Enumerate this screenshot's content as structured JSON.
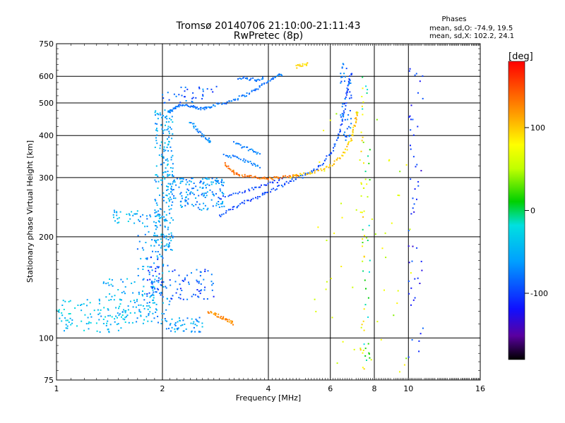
{
  "header": {
    "title_line1": "Tromsø 20140706 21:10:00-21:11:43",
    "title_line2": "RwPretec (8p)",
    "phase_title": "Phases",
    "phase_o": "mean, sd,O: -74.9, 19.5",
    "phase_x": "mean, sd,X: 102.2, 24.1"
  },
  "colorbar": {
    "unit": "[deg]",
    "range": [
      -180,
      180
    ],
    "ticks": [
      {
        "value": 100,
        "label": "100"
      },
      {
        "value": 0,
        "label": "0"
      },
      {
        "value": -100,
        "label": "-100"
      }
    ]
  },
  "chart_data": {
    "type": "scatter",
    "xlabel": "Frequency [MHz]",
    "ylabel": "Stationary phase Virtual Height [km]",
    "x_scale": "log",
    "y_scale": "log",
    "xlim": [
      1,
      16
    ],
    "ylim": [
      75,
      750
    ],
    "x_ticks": [
      {
        "value": 1,
        "label": "1"
      },
      {
        "value": 2,
        "label": "2"
      },
      {
        "value": 4,
        "label": "4"
      },
      {
        "value": 6,
        "label": "6"
      },
      {
        "value": 8,
        "label": "8"
      },
      {
        "value": 10,
        "label": "10"
      },
      {
        "value": 16,
        "label": "16"
      }
    ],
    "y_ticks": [
      {
        "value": 75,
        "label": "75"
      },
      {
        "value": 100,
        "label": "100"
      },
      {
        "value": 200,
        "label": "200"
      },
      {
        "value": 300,
        "label": "300"
      },
      {
        "value": 400,
        "label": "400"
      },
      {
        "value": 500,
        "label": "500"
      },
      {
        "value": 600,
        "label": "600"
      },
      {
        "value": 750,
        "label": "750"
      }
    ],
    "grid": true,
    "traces": [
      {
        "name": "",
        "phase": -80,
        "points": [
          [
            2.1,
            470
          ],
          [
            2.15,
            480
          ],
          [
            2.2,
            490
          ],
          [
            2.3,
            495
          ],
          [
            2.4,
            488
          ],
          [
            2.5,
            482
          ],
          [
            2.6,
            480
          ],
          [
            2.7,
            486
          ],
          [
            2.8,
            492
          ],
          [
            3.0,
            500
          ],
          [
            3.2,
            512
          ],
          [
            3.4,
            525
          ],
          [
            3.6,
            540
          ],
          [
            3.8,
            560
          ],
          [
            4.0,
            580
          ],
          [
            4.2,
            600
          ],
          [
            4.4,
            610
          ]
        ]
      },
      {
        "name": "",
        "phase": -70,
        "points": [
          [
            2.4,
            440
          ],
          [
            2.5,
            420
          ],
          [
            2.6,
            400
          ],
          [
            2.7,
            390
          ],
          [
            2.75,
            380
          ]
        ]
      },
      {
        "name": "",
        "phase": -95,
        "points": [
          [
            2.9,
            230
          ],
          [
            3.1,
            240
          ],
          [
            3.3,
            248
          ],
          [
            3.5,
            256
          ],
          [
            3.8,
            265
          ],
          [
            4.0,
            272
          ],
          [
            4.3,
            282
          ],
          [
            4.6,
            292
          ],
          [
            4.9,
            300
          ],
          [
            5.2,
            308
          ],
          [
            5.5,
            320
          ],
          [
            5.8,
            338
          ],
          [
            6.1,
            362
          ],
          [
            6.3,
            395
          ],
          [
            6.5,
            440
          ],
          [
            6.6,
            490
          ],
          [
            6.7,
            540
          ],
          [
            6.8,
            585
          ],
          [
            6.9,
            620
          ]
        ]
      },
      {
        "name": "",
        "phase": -100,
        "points": [
          [
            2.9,
            260
          ],
          [
            3.2,
            268
          ],
          [
            3.5,
            275
          ],
          [
            3.8,
            282
          ],
          [
            4.1,
            290
          ],
          [
            4.4,
            296
          ]
        ]
      },
      {
        "name": "",
        "phase": 135,
        "points": [
          [
            3.0,
            330
          ],
          [
            3.1,
            318
          ],
          [
            3.2,
            310
          ],
          [
            3.3,
            306
          ],
          [
            3.5,
            302
          ],
          [
            3.7,
            300
          ],
          [
            3.9,
            298
          ],
          [
            4.1,
            298
          ],
          [
            4.3,
            300
          ],
          [
            4.6,
            302
          ],
          [
            4.9,
            305
          ]
        ]
      },
      {
        "name": "",
        "phase": 100,
        "points": [
          [
            4.6,
            300
          ],
          [
            5.0,
            306
          ],
          [
            5.4,
            312
          ],
          [
            5.8,
            320
          ],
          [
            6.1,
            330
          ],
          [
            6.4,
            345
          ],
          [
            6.7,
            365
          ],
          [
            6.9,
            395
          ],
          [
            7.0,
            420
          ],
          [
            7.1,
            450
          ],
          [
            7.15,
            475
          ]
        ]
      },
      {
        "name": "",
        "phase": -75,
        "points": [
          [
            3.0,
            350
          ],
          [
            3.2,
            345
          ],
          [
            3.4,
            338
          ],
          [
            3.6,
            330
          ],
          [
            3.8,
            320
          ]
        ]
      },
      {
        "name": "",
        "phase": -75,
        "points": [
          [
            3.2,
            380
          ],
          [
            3.4,
            370
          ],
          [
            3.6,
            360
          ],
          [
            3.8,
            350
          ]
        ]
      },
      {
        "name": "",
        "phase": -80,
        "points": [
          [
            3.3,
            595
          ],
          [
            3.5,
            590
          ],
          [
            3.7,
            585
          ],
          [
            3.9,
            595
          ]
        ]
      },
      {
        "name": "",
        "phase": 125,
        "points": [
          [
            2.7,
            120
          ],
          [
            2.8,
            118
          ],
          [
            2.9,
            116
          ],
          [
            3.0,
            114
          ],
          [
            3.1,
            112
          ],
          [
            3.2,
            110
          ]
        ]
      },
      {
        "name": "",
        "phase": 95,
        "points": [
          [
            4.8,
            640
          ],
          [
            5.0,
            650
          ],
          [
            5.2,
            655
          ]
        ]
      }
    ],
    "clouds": [
      {
        "name": "",
        "phase": -55,
        "f": [
          1.9,
          2.15
        ],
        "h": [
          180,
          480
        ],
        "n": 220
      },
      {
        "name": "",
        "phase": -65,
        "f": [
          2.05,
          3.0
        ],
        "h": [
          240,
          300
        ],
        "n": 160
      },
      {
        "name": "",
        "phase": -60,
        "f": [
          1.7,
          2.1
        ],
        "h": [
          110,
          240
        ],
        "n": 120
      },
      {
        "name": "",
        "phase": -40,
        "f": [
          1.0,
          1.6
        ],
        "h": [
          104,
          130
        ],
        "n": 90
      },
      {
        "name": "",
        "phase": -50,
        "f": [
          1.3,
          1.9
        ],
        "h": [
          110,
          150
        ],
        "n": 90
      },
      {
        "name": "",
        "phase": -90,
        "f": [
          1.8,
          2.0
        ],
        "h": [
          130,
          180
        ],
        "n": 40
      },
      {
        "name": "",
        "phase": -90,
        "f": [
          2.1,
          2.8
        ],
        "h": [
          130,
          160
        ],
        "n": 60
      },
      {
        "name": "",
        "phase": -60,
        "f": [
          2.05,
          2.6
        ],
        "h": [
          104,
          116
        ],
        "n": 50
      },
      {
        "name": "",
        "phase": -45,
        "f": [
          1.45,
          1.7
        ],
        "h": [
          218,
          240
        ],
        "n": 25
      },
      {
        "name": "",
        "phase": -85,
        "f": [
          2.0,
          2.9
        ],
        "h": [
          500,
          560
        ],
        "n": 35
      },
      {
        "name": "",
        "phase": -80,
        "f": [
          6.4,
          6.9
        ],
        "h": [
          380,
          660
        ],
        "n": 50
      },
      {
        "name": "",
        "phase": 80,
        "f": [
          7.3,
          7.5
        ],
        "h": [
          80,
          640
        ],
        "n": 35
      },
      {
        "name": "",
        "phase": 0,
        "f": [
          7.4,
          7.8
        ],
        "h": [
          80,
          660
        ],
        "n": 30
      },
      {
        "name": "",
        "phase": -110,
        "f": [
          10.0,
          11.0
        ],
        "h": [
          80,
          660
        ],
        "n": 55
      },
      {
        "name": "",
        "phase": 60,
        "f": [
          5.4,
          10.5
        ],
        "h": [
          78,
          500
        ],
        "n": 55
      }
    ]
  }
}
